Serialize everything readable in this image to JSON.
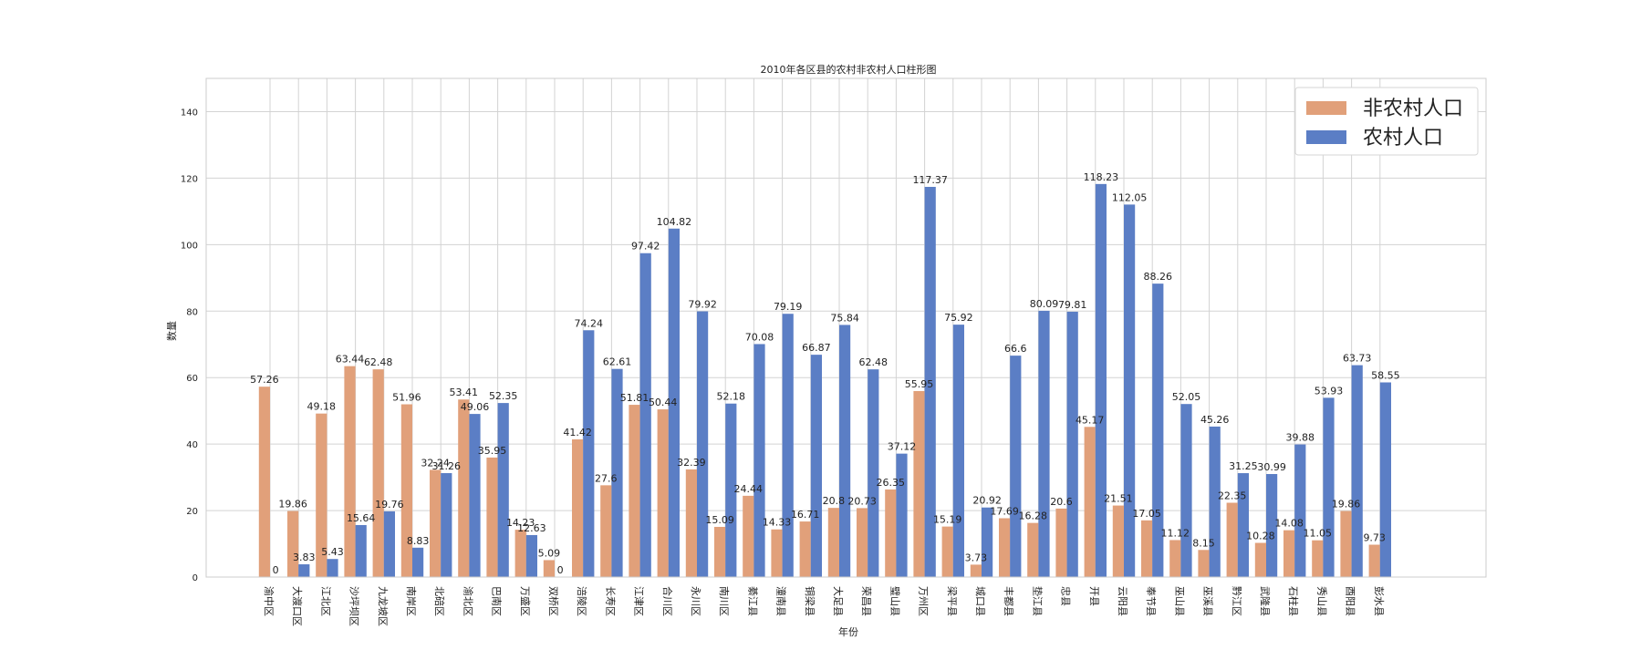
{
  "chart_data": {
    "type": "bar",
    "title": "2010年各区县的农村非农村人口柱形图",
    "xlabel": "年份",
    "ylabel": "数量",
    "ylim": [
      0,
      150
    ],
    "yticks": [
      0,
      20,
      40,
      60,
      80,
      100,
      120,
      140
    ],
    "grid": true,
    "legend_position": "top-right",
    "categories": [
      "渝中区",
      "大渡口区",
      "江北区",
      "沙坪坝区",
      "九龙坡区",
      "南岸区",
      "北碚区",
      "渝北区",
      "巴南区",
      "万盛区",
      "双桥区",
      "涪陵区",
      "长寿区",
      "江津区",
      "合川区",
      "永川区",
      "南川区",
      "綦江县",
      "潼南县",
      "铜梁县",
      "大足县",
      "荣昌县",
      "璧山县",
      "万州区",
      "梁平县",
      "城口县",
      "丰都县",
      "垫江县",
      "忠县",
      "开县",
      "云阳县",
      "奉节县",
      "巫山县",
      "巫溪县",
      "黔江区",
      "武隆县",
      "石柱县",
      "秀山县",
      "酉阳县",
      "彭水县"
    ],
    "series": [
      {
        "name": "非农村人口",
        "color": "#e1a07a",
        "values": [
          57.26,
          19.86,
          49.18,
          63.44,
          62.48,
          51.96,
          32.24,
          53.41,
          35.95,
          14.23,
          5.09,
          41.42,
          27.6,
          51.81,
          50.44,
          32.39,
          15.09,
          24.44,
          14.33,
          16.71,
          20.8,
          20.73,
          26.35,
          55.95,
          15.19,
          3.73,
          17.69,
          16.28,
          20.6,
          45.17,
          21.51,
          17.05,
          11.12,
          8.15,
          22.35,
          10.28,
          14.08,
          11.05,
          19.86,
          9.73
        ]
      },
      {
        "name": "农村人口",
        "color": "#5b7ec5",
        "values": [
          0.0,
          3.83,
          5.43,
          15.64,
          19.76,
          8.83,
          31.26,
          49.06,
          52.35,
          12.63,
          0.0,
          74.24,
          62.61,
          97.42,
          104.82,
          79.92,
          52.18,
          70.08,
          79.19,
          66.87,
          75.84,
          62.48,
          37.12,
          117.37,
          75.92,
          20.92,
          66.6,
          80.09,
          79.81,
          118.23,
          112.05,
          88.26,
          52.05,
          45.26,
          31.25,
          30.99,
          39.88,
          53.93,
          63.73,
          58.55
        ]
      }
    ]
  }
}
